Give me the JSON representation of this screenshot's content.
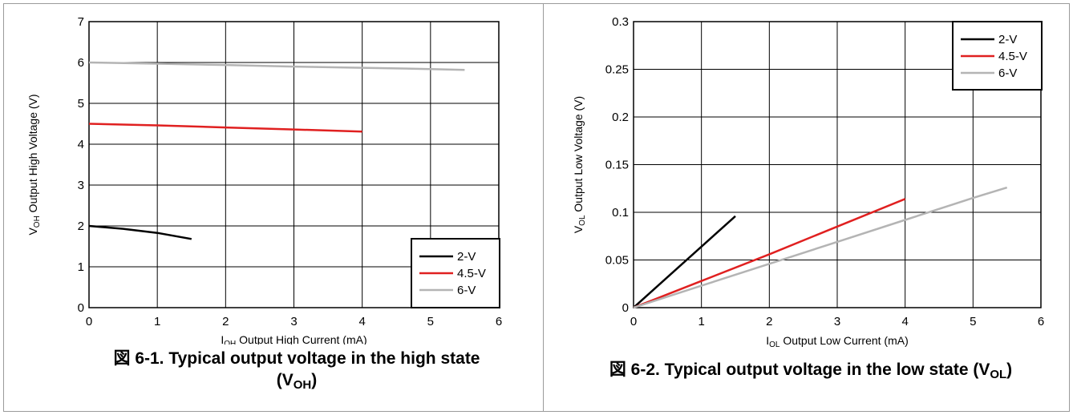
{
  "chart_data": [
    {
      "type": "line",
      "xlabel": {
        "main": "I",
        "sub": "OH",
        "rest": " Output High Current (mA)"
      },
      "ylabel": {
        "main": "V",
        "sub": "OH",
        "rest": " Output High Voltage (V)"
      },
      "xlim": [
        0,
        6
      ],
      "ylim": [
        0,
        7
      ],
      "x_ticks": [
        "0",
        "1",
        "2",
        "3",
        "4",
        "5",
        "6"
      ],
      "y_ticks": [
        "0",
        "1",
        "2",
        "3",
        "4",
        "5",
        "6",
        "7"
      ],
      "grid": true,
      "legend_position": "bottom-right",
      "series": [
        {
          "name": "2-V",
          "color": "#000000",
          "x": [
            0,
            0.5,
            1,
            1.5
          ],
          "y": [
            2.0,
            1.93,
            1.83,
            1.68
          ]
        },
        {
          "name": "4.5-V",
          "color": "#e02020",
          "x": [
            0,
            1,
            2,
            3,
            4
          ],
          "y": [
            4.5,
            4.46,
            4.41,
            4.36,
            4.31
          ]
        },
        {
          "name": "6-V",
          "color": "#b4b4b4",
          "x": [
            0,
            1,
            2,
            3,
            4,
            5,
            5.5
          ],
          "y": [
            6.0,
            5.97,
            5.94,
            5.9,
            5.87,
            5.84,
            5.82
          ]
        }
      ]
    },
    {
      "type": "line",
      "xlabel": {
        "main": "I",
        "sub": "OL",
        "rest": " Output Low Current (mA)"
      },
      "ylabel": {
        "main": "V",
        "sub": "OL",
        "rest": " Output Low Voltage (V)"
      },
      "xlim": [
        0,
        6
      ],
      "ylim": [
        0,
        0.3
      ],
      "x_ticks": [
        "0",
        "1",
        "2",
        "3",
        "4",
        "5",
        "6"
      ],
      "y_ticks": [
        "0",
        "0.05",
        "0.1",
        "0.15",
        "0.2",
        "0.25",
        "0.3"
      ],
      "grid": true,
      "legend_position": "top-right",
      "series": [
        {
          "name": "2-V",
          "color": "#000000",
          "x": [
            0,
            0.5,
            1,
            1.5
          ],
          "y": [
            0,
            0.032,
            0.064,
            0.096
          ]
        },
        {
          "name": "4.5-V",
          "color": "#e02020",
          "x": [
            0,
            1,
            2,
            3,
            4
          ],
          "y": [
            0,
            0.028,
            0.056,
            0.085,
            0.114
          ]
        },
        {
          "name": "6-V",
          "color": "#b4b4b4",
          "x": [
            0,
            1,
            2,
            3,
            4,
            5,
            5.5
          ],
          "y": [
            0,
            0.023,
            0.046,
            0.069,
            0.092,
            0.115,
            0.126
          ]
        }
      ]
    }
  ],
  "captions": [
    {
      "prefix": "図 6-1. Typical output voltage in the high state",
      "line2_open": "(V",
      "sub": "OH",
      "close": ")"
    },
    {
      "prefix": "図 6-2. Typical output voltage in the low state (V",
      "sub": "OL",
      "close": ")"
    }
  ]
}
